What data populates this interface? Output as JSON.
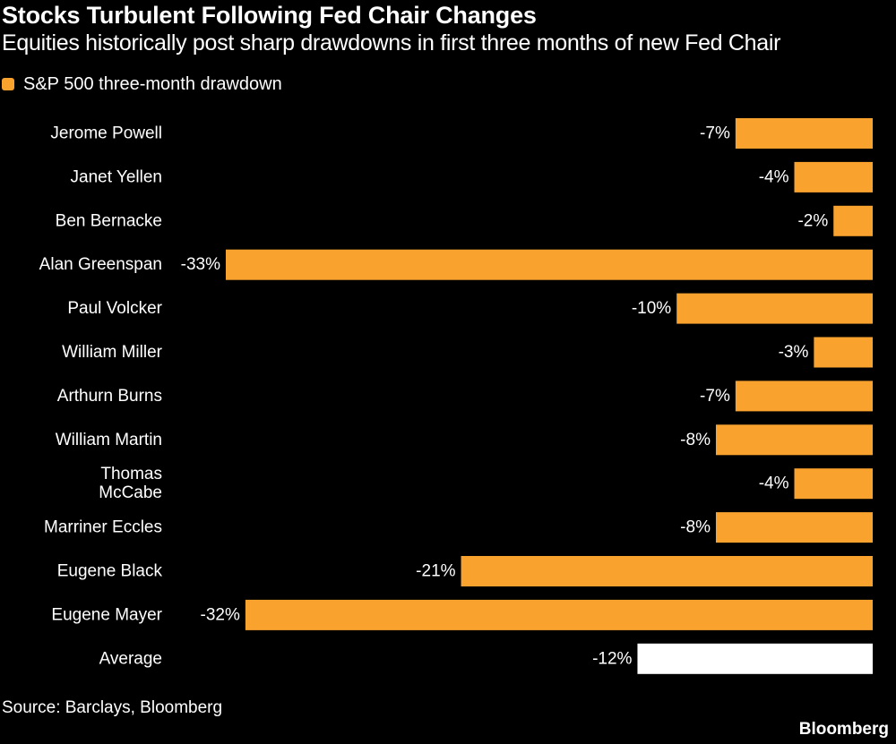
{
  "title": "Stocks Turbulent Following Fed Chair Changes",
  "subtitle": "Equities historically post sharp drawdowns in first three months of new Fed Chair",
  "legend_label": "S&P 500 three-month drawdown",
  "source": "Source: Barclays, Bloomberg",
  "brand": "Bloomberg",
  "colors": {
    "bar": "#F9A22E",
    "average_bar": "#FFFFFF",
    "background": "#000000",
    "text": "#FFFFFF"
  },
  "chart_data": {
    "type": "bar",
    "orientation": "horizontal",
    "series_label": "S&P 500 three-month drawdown",
    "xlim": [
      -33,
      0
    ],
    "categories": [
      [
        "Jerome Powell"
      ],
      [
        "Janet Yellen"
      ],
      [
        "Ben Bernacke"
      ],
      [
        "Alan Greenspan"
      ],
      [
        "Paul Volcker"
      ],
      [
        "William Miller"
      ],
      [
        "Arthurn Burns"
      ],
      [
        "William Martin"
      ],
      [
        "Thomas",
        "McCabe"
      ],
      [
        "Marriner Eccles"
      ],
      [
        "Eugene Black"
      ],
      [
        "Eugene Mayer"
      ],
      [
        "Average"
      ]
    ],
    "values": [
      -7,
      -4,
      -2,
      -33,
      -10,
      -3,
      -7,
      -8,
      -4,
      -8,
      -21,
      -32,
      -12
    ],
    "value_labels": [
      "-7%",
      "-4%",
      "-2%",
      "-33%",
      "-10%",
      "-3%",
      "-7%",
      "-8%",
      "-4%",
      "-8%",
      "-21%",
      "-32%",
      "-12%"
    ],
    "highlight_last_as_average": true
  }
}
